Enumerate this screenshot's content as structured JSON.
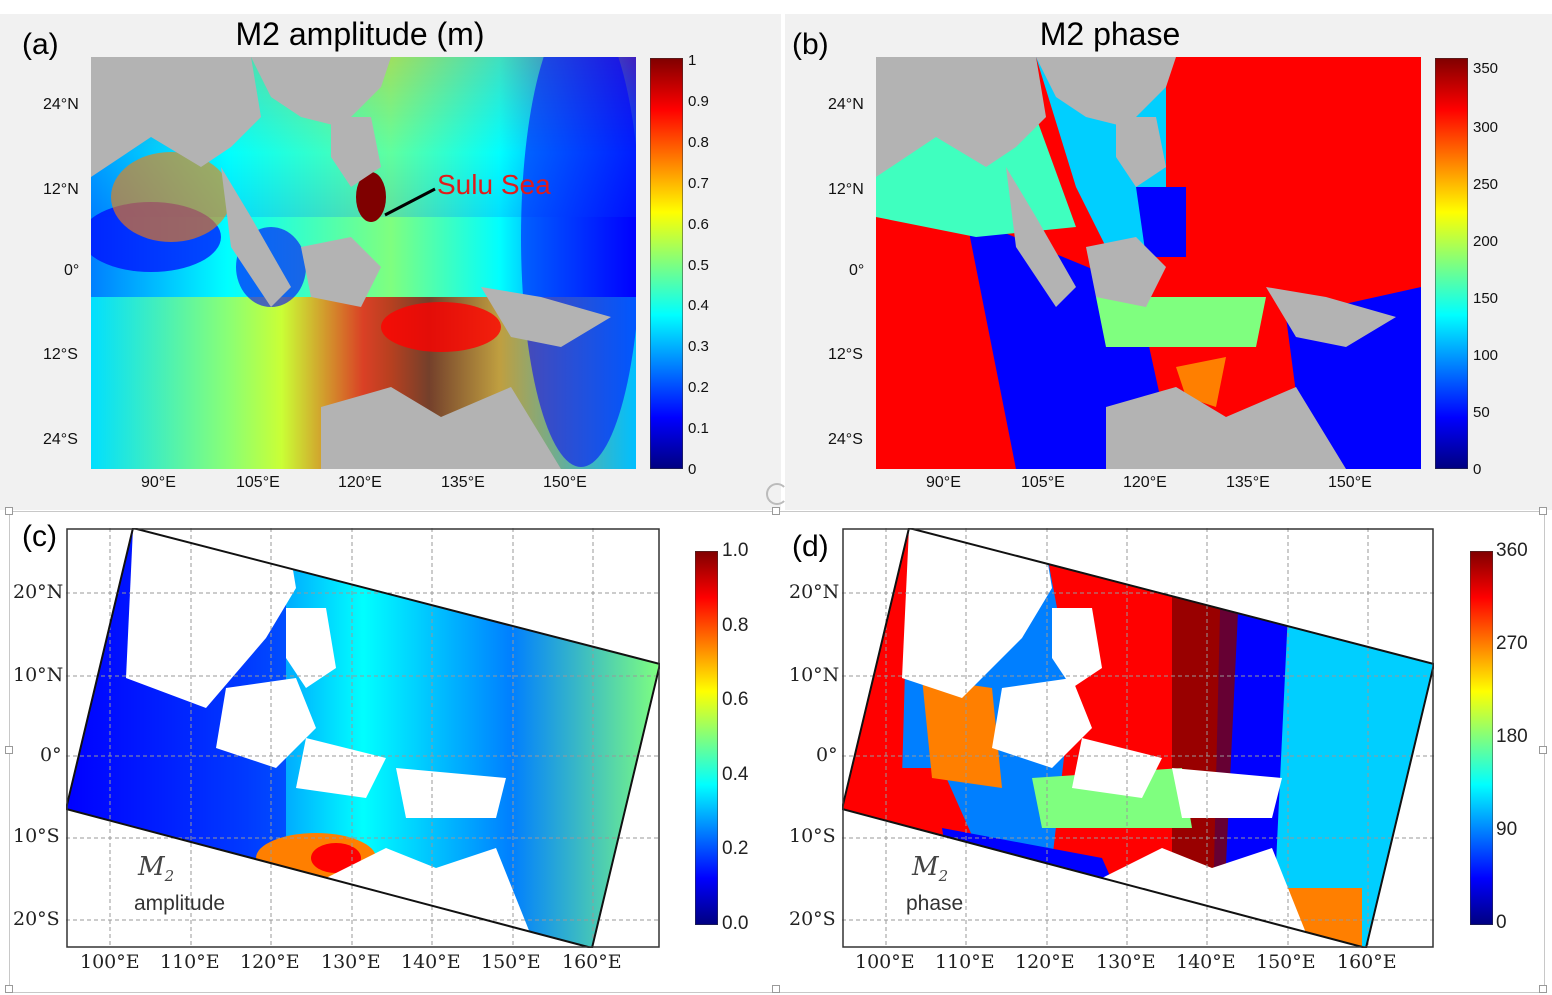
{
  "colormap": {
    "jet": [
      "#00007f",
      "#0000ff",
      "#007fff",
      "#00ffff",
      "#7fff7f",
      "#ffff00",
      "#ff7f00",
      "#ff0000",
      "#7f0000"
    ],
    "land_gray": "#b3b3b3",
    "land_white": "#ffffff",
    "annotation_red": "#e01b1b"
  },
  "panels": [
    {
      "label": "(a)",
      "title": "M2 amplitude (m)",
      "lat_labels": [
        "24°N",
        "12°N",
        "0°",
        "12°S",
        "24°S"
      ],
      "lon_labels": [
        "90°E",
        "105°E",
        "120°E",
        "135°E",
        "150°E"
      ],
      "colorbar_ticks": [
        "1",
        "0.9",
        "0.8",
        "0.7",
        "0.6",
        "0.5",
        "0.4",
        "0.3",
        "0.2",
        "0.1",
        "0"
      ],
      "annotation": "Sulu Sea"
    },
    {
      "label": "(b)",
      "title": "M2 phase",
      "lat_labels": [
        "24°N",
        "12°N",
        "0°",
        "12°S",
        "24°S"
      ],
      "lon_labels": [
        "90°E",
        "105°E",
        "120°E",
        "135°E",
        "150°E"
      ],
      "colorbar_ticks": [
        "350",
        "300",
        "250",
        "200",
        "150",
        "100",
        "50",
        "0"
      ]
    },
    {
      "label": "(c)",
      "lat_labels": [
        "20°N",
        "10°N",
        "0°",
        "10°S",
        "20°S"
      ],
      "lon_labels": [
        "100°E",
        "110°E",
        "120°E",
        "130°E",
        "140°E",
        "150°E",
        "160°E"
      ],
      "colorbar_ticks": [
        "1.0",
        "0.8",
        "0.6",
        "0.4",
        "0.2",
        "0.0"
      ],
      "inset_symbol": "M",
      "inset_subscript": "2",
      "inset_word": "amplitude"
    },
    {
      "label": "(d)",
      "lat_labels": [
        "20°N",
        "10°N",
        "0°",
        "10°S",
        "20°S"
      ],
      "lon_labels": [
        "100°E",
        "110°E",
        "120°E",
        "130°E",
        "140°E",
        "150°E",
        "160°E"
      ],
      "colorbar_ticks": [
        "360",
        "270",
        "180",
        "90",
        "0"
      ],
      "inset_symbol": "M",
      "inset_subscript": "2",
      "inset_word": "phase"
    }
  ]
}
